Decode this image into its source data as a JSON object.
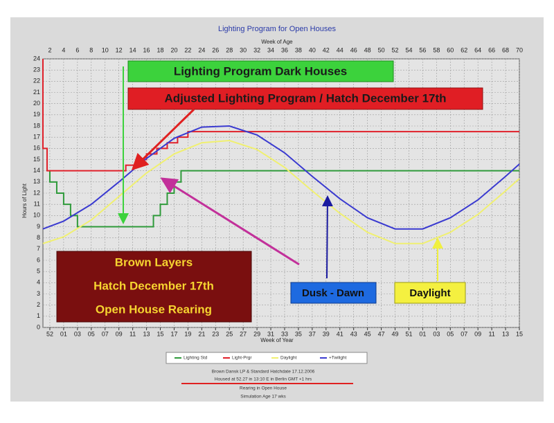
{
  "chart_data": {
    "type": "line",
    "title": "Lighting Program for Open Houses",
    "x_label_top": "Week of Age",
    "x_label": "Week of Year",
    "y_label": "Hours of Light",
    "xlim": [
      1,
      70
    ],
    "ylim": [
      0,
      24
    ],
    "grid": true,
    "xticks": [
      2,
      4,
      6,
      8,
      10,
      12,
      14,
      16,
      18,
      20,
      22,
      24,
      26,
      28,
      30,
      32,
      34,
      36,
      38,
      40,
      42,
      44,
      46,
      48,
      50,
      52,
      54,
      56,
      58,
      60,
      62,
      64,
      66,
      68,
      70
    ],
    "x2ticks": [
      {
        "value": 2,
        "label": "52"
      },
      {
        "value": 4,
        "label": "01"
      },
      {
        "value": 6,
        "label": "03"
      },
      {
        "value": 8,
        "label": "05"
      },
      {
        "value": 10,
        "label": "07"
      },
      {
        "value": 12,
        "label": "09"
      },
      {
        "value": 14,
        "label": "11"
      },
      {
        "value": 16,
        "label": "13"
      },
      {
        "value": 18,
        "label": "15"
      },
      {
        "value": 20,
        "label": "17"
      },
      {
        "value": 22,
        "label": "19"
      },
      {
        "value": 24,
        "label": "21"
      },
      {
        "value": 26,
        "label": "23"
      },
      {
        "value": 28,
        "label": "25"
      },
      {
        "value": 30,
        "label": "27"
      },
      {
        "value": 32,
        "label": "29"
      },
      {
        "value": 34,
        "label": "31"
      },
      {
        "value": 36,
        "label": "33"
      },
      {
        "value": 38,
        "label": "35"
      },
      {
        "value": 40,
        "label": "37"
      },
      {
        "value": 42,
        "label": "39"
      },
      {
        "value": 44,
        "label": "41"
      },
      {
        "value": 46,
        "label": "43"
      },
      {
        "value": 48,
        "label": "45"
      },
      {
        "value": 50,
        "label": "47"
      },
      {
        "value": 52,
        "label": "49"
      },
      {
        "value": 54,
        "label": "51"
      },
      {
        "value": 56,
        "label": "01"
      },
      {
        "value": 58,
        "label": "03"
      },
      {
        "value": 60,
        "label": "05"
      },
      {
        "value": 62,
        "label": "07"
      },
      {
        "value": 64,
        "label": "09"
      },
      {
        "value": 66,
        "label": "11"
      },
      {
        "value": 68,
        "label": "13"
      },
      {
        "value": 70,
        "label": "15"
      }
    ],
    "yticks": [
      0,
      1,
      2,
      3,
      4,
      5,
      6,
      7,
      8,
      9,
      10,
      11,
      12,
      13,
      14,
      15,
      16,
      17,
      18,
      19,
      20,
      21,
      22,
      23,
      24
    ],
    "series": [
      {
        "name": "Lighting Std",
        "color": "#2e9a3a",
        "x": [
          2,
          2,
          3,
          3,
          4,
          4,
          5,
          5,
          6,
          6,
          17,
          17,
          18,
          18,
          19,
          19,
          20,
          20,
          21,
          21,
          70
        ],
        "values": [
          14,
          13,
          13,
          12,
          12,
          11,
          11,
          10,
          10,
          9,
          9,
          10,
          10,
          11,
          11,
          12,
          12,
          13,
          13,
          14,
          14
        ]
      },
      {
        "name": "Light-Prgr",
        "color": "#e0202a",
        "x": [
          1,
          1,
          1.6,
          1.6,
          13,
          13,
          14.5,
          14.5,
          16,
          16,
          17.5,
          17.5,
          19,
          19,
          20.5,
          20.5,
          22,
          22,
          70
        ],
        "values": [
          24,
          16,
          16,
          14,
          14,
          14.5,
          14.5,
          15,
          15,
          15.5,
          15.5,
          16,
          16,
          16.5,
          16.5,
          17,
          17,
          17.5,
          17.5
        ]
      },
      {
        "name": "Daylight",
        "color": "#f0f070",
        "x": [
          1,
          4,
          8,
          12,
          16,
          20,
          24,
          28,
          32,
          36,
          40,
          44,
          48,
          52,
          56,
          60,
          64,
          68,
          70
        ],
        "values": [
          7.5,
          8.1,
          9.6,
          11.7,
          13.8,
          15.5,
          16.5,
          16.7,
          15.9,
          14.3,
          12.2,
          10.2,
          8.5,
          7.5,
          7.5,
          8.5,
          10.1,
          12.2,
          13.3
        ]
      },
      {
        "name": "+Twilight",
        "color": "#3a3ad0",
        "x": [
          1,
          4,
          8,
          12,
          16,
          20,
          24,
          28,
          32,
          36,
          40,
          44,
          48,
          52,
          56,
          60,
          64,
          68,
          70
        ],
        "values": [
          8.8,
          9.5,
          11.0,
          13.0,
          15.1,
          16.9,
          17.9,
          18.0,
          17.2,
          15.6,
          13.5,
          11.5,
          9.8,
          8.8,
          8.8,
          9.8,
          11.4,
          13.5,
          14.6
        ]
      }
    ],
    "annotations": {
      "dark_houses": "Lighting Program Dark Houses",
      "adjusted": "Adjusted Lighting Program / Hatch December 17th",
      "brown_box": [
        "Brown Layers",
        "Hatch December 17th",
        "Open House Rearing"
      ],
      "dusk_dawn": "Dusk - Dawn",
      "daylight": "Daylight"
    },
    "footer": [
      "Brown Dansk LP & Standard  Hatchdate 17.12.2006",
      "Housed at 52.27 in 13:10 E  in Berlin GMT +1 hrs",
      "Rearing in Open House",
      "Simulation Age 17 wks"
    ]
  }
}
